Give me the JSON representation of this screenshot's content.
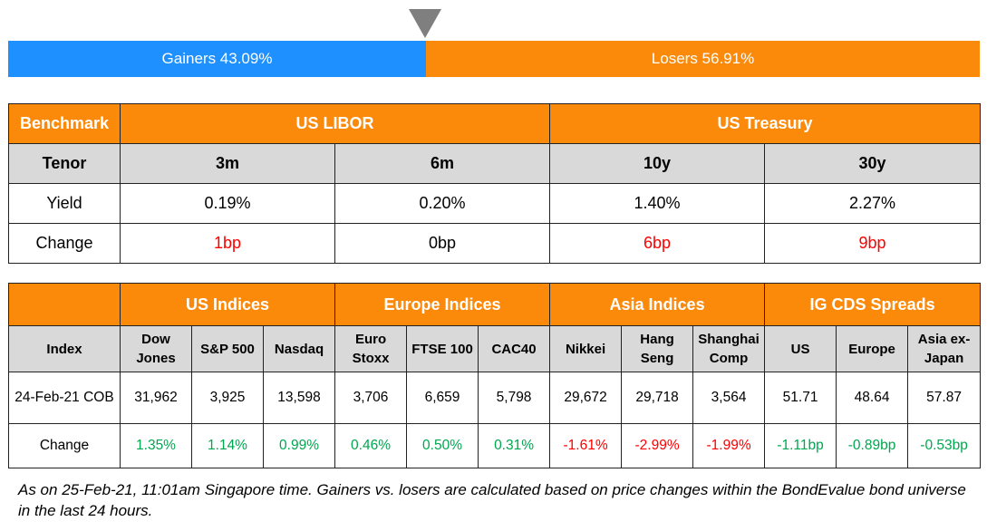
{
  "breadth": {
    "gainers_label": "Gainers 43.09%",
    "losers_label": "Losers 56.91%",
    "gainers_pct": 43.09,
    "losers_pct": 56.91,
    "gainers_color": "#1e90ff",
    "losers_color": "#fb8a0b",
    "marker_color": "#7f7f7f"
  },
  "rates": {
    "benchmark_label": "Benchmark",
    "group1": "US LIBOR",
    "group2": "US Treasury",
    "tenor_label": "Tenor",
    "tenors": [
      "3m",
      "6m",
      "10y",
      "30y"
    ],
    "yield_label": "Yield",
    "yields": [
      "0.19%",
      "0.20%",
      "1.40%",
      "2.27%"
    ],
    "change_label": "Change",
    "changes": [
      "1bp",
      "0bp",
      "6bp",
      "9bp"
    ]
  },
  "indices": {
    "groups": [
      "US Indices",
      "Europe Indices",
      "Asia Indices",
      "IG CDS Spreads"
    ],
    "index_label": "Index",
    "columns": [
      [
        "Dow",
        "Jones"
      ],
      [
        "S&P 500"
      ],
      [
        "Nasdaq"
      ],
      [
        "Euro",
        "Stoxx"
      ],
      [
        "FTSE 100"
      ],
      [
        "CAC40"
      ],
      [
        "Nikkei"
      ],
      [
        "Hang",
        "Seng"
      ],
      [
        "Shanghai",
        "Comp"
      ],
      [
        "US"
      ],
      [
        "Europe"
      ],
      [
        "Asia ex-",
        "Japan"
      ]
    ],
    "cob_label": "24-Feb-21 COB",
    "values": [
      "31,962",
      "3,925",
      "13,598",
      "3,706",
      "6,659",
      "5,798",
      "29,672",
      "29,718",
      "3,564",
      "51.71",
      "48.64",
      "57.87"
    ],
    "change_label": "Change",
    "changes": [
      "1.35%",
      "1.14%",
      "0.99%",
      "0.46%",
      "0.50%",
      "0.31%",
      "-1.61%",
      "-2.99%",
      "-1.99%",
      "-1.11bp",
      "-0.89bp",
      "-0.53bp"
    ]
  },
  "footnote": "As on 25-Feb-21, 11:01am Singapore time. Gainers vs. losers are calculated based on price changes within the BondEvalue bond universe in the last 24 hours."
}
